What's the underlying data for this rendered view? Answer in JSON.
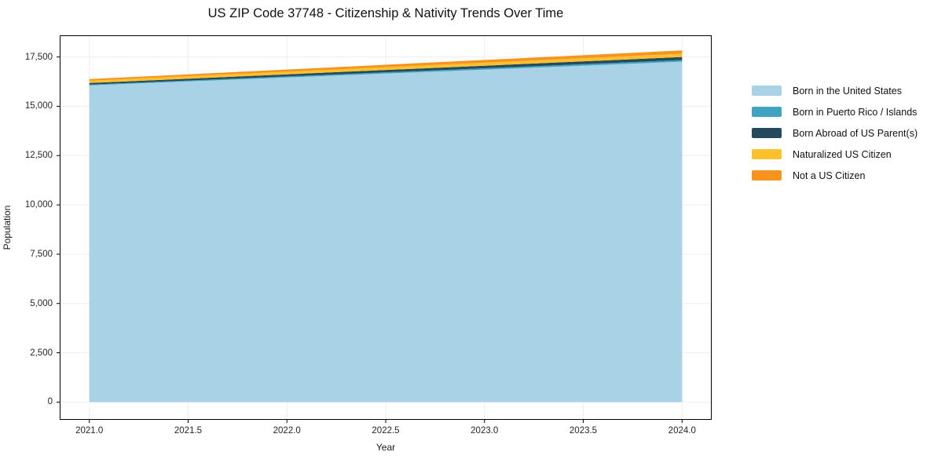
{
  "figure": {
    "title": "US ZIP Code 37748 - Citizenship & Nativity Trends Over Time"
  },
  "chart_data": {
    "type": "area",
    "stacked": true,
    "title": "US ZIP Code 37748 - Citizenship & Nativity Trends Over Time",
    "xlabel": "Year",
    "ylabel": "Population",
    "x": [
      2021,
      2022,
      2023,
      2024
    ],
    "series": [
      {
        "name": "Born in the United States",
        "color": "#a8d2e6",
        "values": [
          16060,
          16460,
          16860,
          17260
        ]
      },
      {
        "name": "Born in Puerto Rico / Islands",
        "color": "#41a3c2",
        "values": [
          40,
          55,
          70,
          85
        ]
      },
      {
        "name": "Born Abroad of US Parent(s)",
        "color": "#254a5d",
        "values": [
          80,
          105,
          130,
          155
        ]
      },
      {
        "name": "Naturalized US Citizen",
        "color": "#f9c22d",
        "values": [
          120,
          135,
          150,
          165
        ]
      },
      {
        "name": "Not a US Citizen",
        "color": "#f6941e",
        "values": [
          80,
          110,
          140,
          170
        ]
      }
    ],
    "xlim": [
      2020.85,
      2024.15
    ],
    "ylim": [
      -900,
      18600
    ],
    "xticks": [
      2021.0,
      2021.5,
      2022.0,
      2022.5,
      2023.0,
      2023.5,
      2024.0
    ],
    "xtick_labels": [
      "2021.0",
      "2021.5",
      "2022.0",
      "2022.5",
      "2023.0",
      "2023.5",
      "2024.0"
    ],
    "yticks": [
      0,
      2500,
      5000,
      7500,
      10000,
      12500,
      15000,
      17500
    ],
    "ytick_labels": [
      "0",
      "2,500",
      "5,000",
      "7,500",
      "10,000",
      "12,500",
      "15,000",
      "17,500"
    ],
    "grid": true,
    "grid_color": "#ededed",
    "frame_color": "#000000",
    "legend_position": "right-outside"
  }
}
